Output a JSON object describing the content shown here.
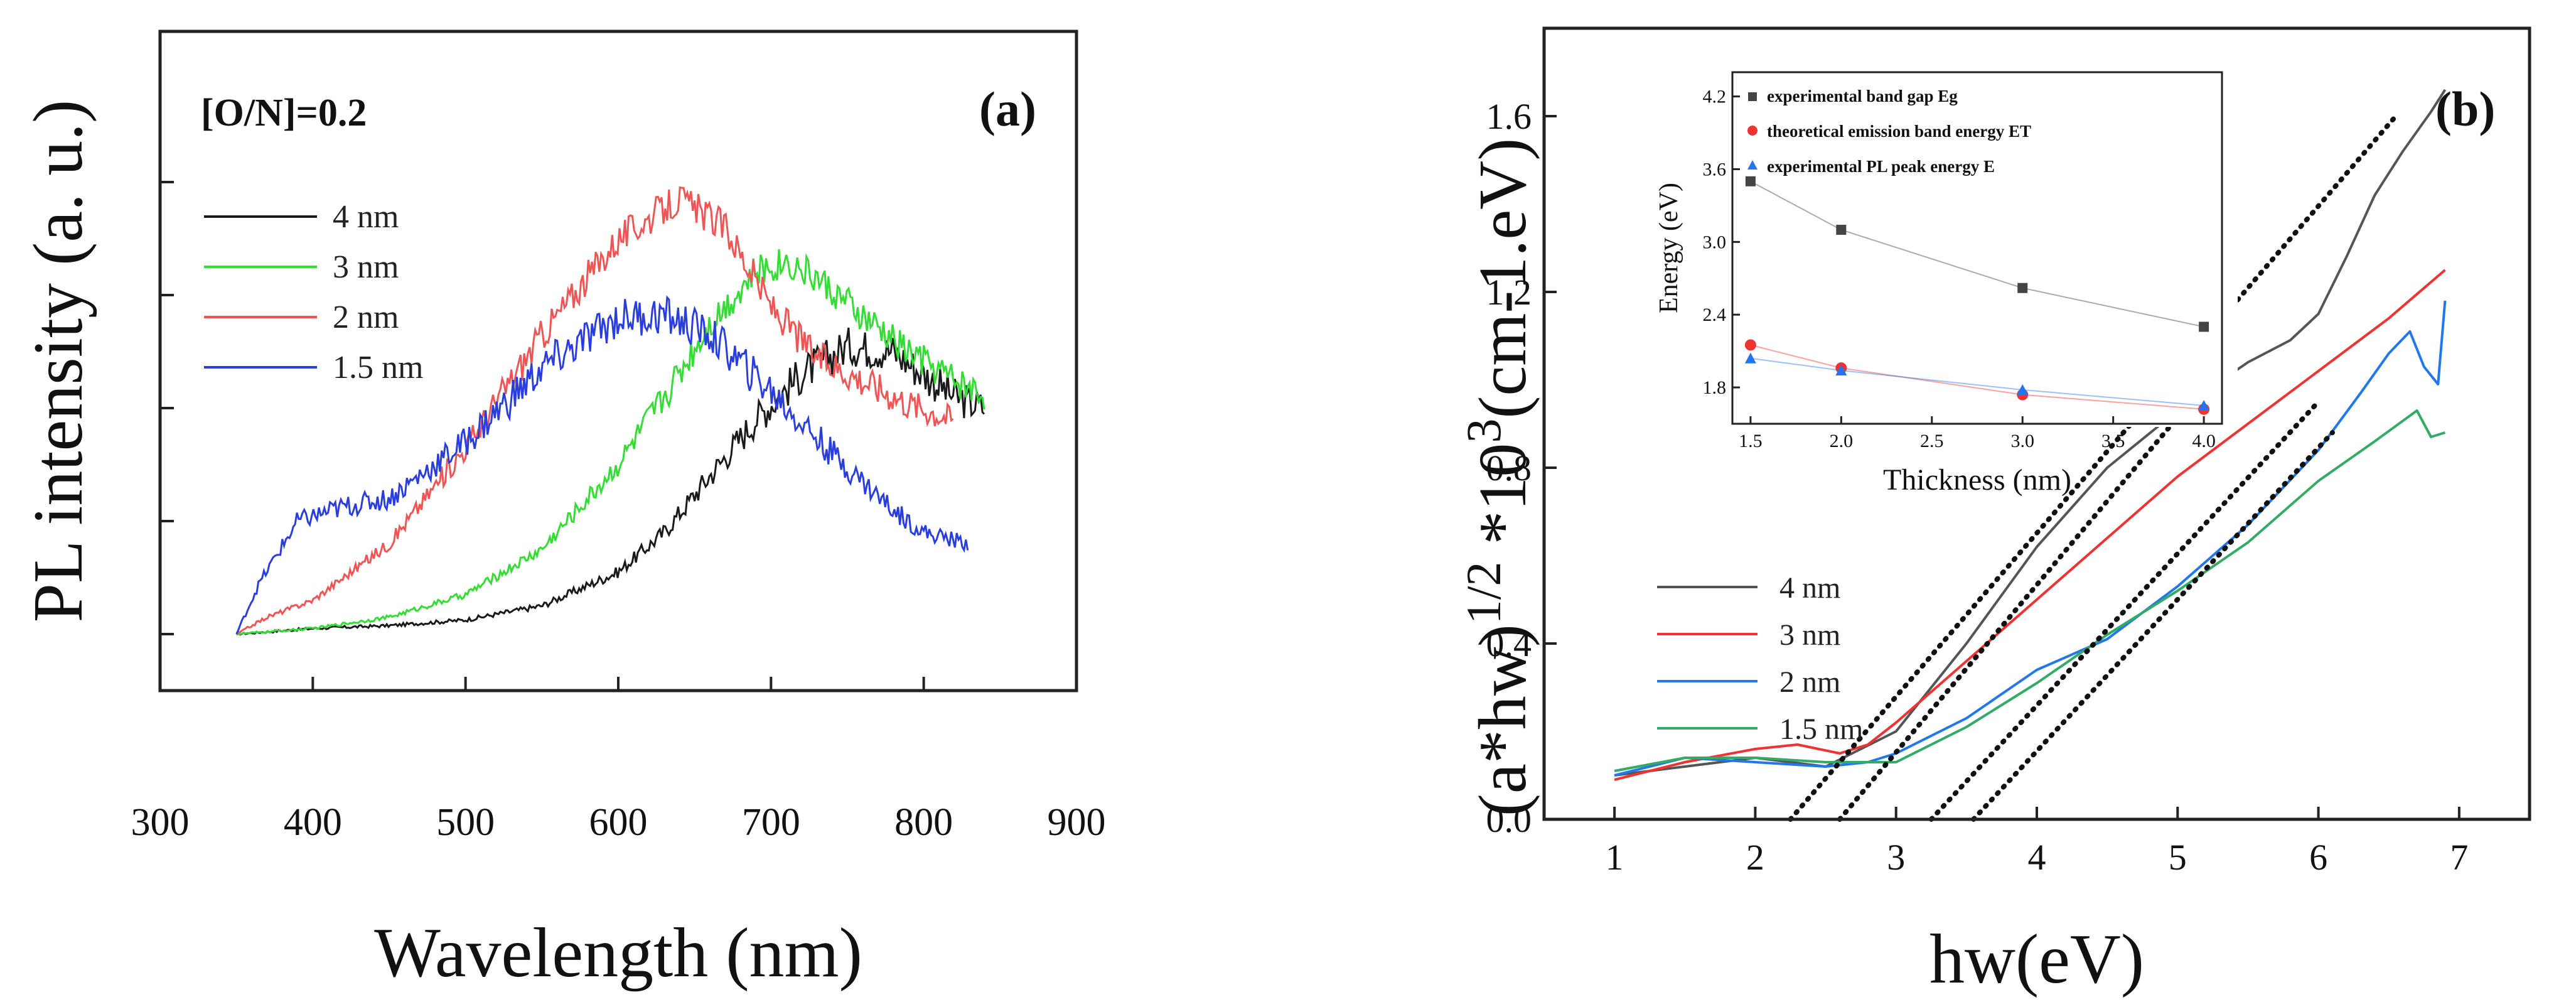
{
  "chart_data": [
    {
      "panel": "a",
      "type": "line",
      "panel_label": "(a)",
      "annotation": "[O/N]=0.2",
      "xlabel": "Wavelength (nm)",
      "ylabel": "PL intensity (a. u.)",
      "xlim": [
        300,
        900
      ],
      "xticks": [
        300,
        400,
        500,
        600,
        700,
        800,
        900
      ],
      "ylim": [
        0,
        1
      ],
      "yticks_unlabeled": 5,
      "legend_position": "upper-left",
      "series": [
        {
          "name": "4 nm",
          "color": "#1a1a1a",
          "noise": 0.035,
          "x": [
            350,
            400,
            450,
            500,
            550,
            600,
            630,
            660,
            690,
            720,
            750,
            780,
            800,
            820,
            840
          ],
          "y": [
            0,
            0.01,
            0.015,
            0.025,
            0.05,
            0.11,
            0.18,
            0.28,
            0.38,
            0.46,
            0.51,
            0.5,
            0.46,
            0.42,
            0.4
          ]
        },
        {
          "name": "3 nm",
          "color": "#33dd33",
          "noise": 0.03,
          "x": [
            350,
            400,
            450,
            500,
            550,
            600,
            630,
            660,
            690,
            710,
            730,
            760,
            790,
            820,
            840
          ],
          "y": [
            0,
            0.01,
            0.03,
            0.07,
            0.15,
            0.3,
            0.42,
            0.55,
            0.64,
            0.66,
            0.63,
            0.56,
            0.5,
            0.45,
            0.42
          ]
        },
        {
          "name": "2 nm",
          "color": "#ee5555",
          "noise": 0.03,
          "x": [
            350,
            370,
            400,
            450,
            500,
            550,
            600,
            640,
            670,
            700,
            730,
            760,
            790,
            820
          ],
          "y": [
            0,
            0.03,
            0.06,
            0.16,
            0.33,
            0.53,
            0.7,
            0.77,
            0.72,
            0.58,
            0.49,
            0.45,
            0.41,
            0.38
          ]
        },
        {
          "name": "1.5 nm",
          "color": "#2a3ddd",
          "noise": 0.035,
          "x": [
            350,
            365,
            390,
            420,
            450,
            500,
            550,
            600,
            630,
            660,
            700,
            740,
            780,
            800,
            830
          ],
          "y": [
            0,
            0.09,
            0.2,
            0.225,
            0.24,
            0.34,
            0.47,
            0.56,
            0.565,
            0.53,
            0.43,
            0.32,
            0.22,
            0.18,
            0.16
          ]
        }
      ]
    },
    {
      "panel": "b",
      "type": "line",
      "panel_label": "(b)",
      "xlabel": "hw(eV)",
      "ylabel": "(a*hw)1/2 *103(cm-1.eV)",
      "ylabel_parts": {
        "main": "(a*hw)",
        "sup1": "1/2",
        "mid": " *10",
        "sup2": "3",
        "unit": "(cm-1.eV)"
      },
      "xlim": [
        0.5,
        7.5
      ],
      "xticks": [
        1,
        2,
        3,
        4,
        5,
        6,
        7
      ],
      "ylim": [
        0,
        1.8
      ],
      "yticks": [
        0.0,
        0.4,
        0.8,
        1.2,
        1.6
      ],
      "ytick_labels": [
        "0.0",
        "0.4",
        "0.8",
        "1.2",
        "1.6"
      ],
      "legend_position": "lower-left",
      "series": [
        {
          "name": "4 nm",
          "color": "#555555",
          "x": [
            1.0,
            1.5,
            2.0,
            2.5,
            3.0,
            3.5,
            4.0,
            4.5,
            5.0,
            5.5,
            5.8,
            6.0,
            6.2,
            6.4,
            6.6,
            6.8,
            6.9
          ],
          "y": [
            0.1,
            0.12,
            0.14,
            0.12,
            0.2,
            0.4,
            0.62,
            0.8,
            0.93,
            1.04,
            1.09,
            1.15,
            1.28,
            1.42,
            1.52,
            1.61,
            1.66
          ]
        },
        {
          "name": "3 nm",
          "color": "#ee3333",
          "x": [
            1.0,
            1.5,
            2.0,
            2.3,
            2.6,
            2.8,
            3.0,
            3.5,
            4.0,
            4.5,
            5.0,
            5.5,
            6.0,
            6.5,
            6.9
          ],
          "y": [
            0.09,
            0.13,
            0.16,
            0.17,
            0.15,
            0.17,
            0.22,
            0.36,
            0.5,
            0.64,
            0.78,
            0.9,
            1.02,
            1.14,
            1.25
          ]
        },
        {
          "name": "2 nm",
          "color": "#2277ee",
          "x": [
            1.0,
            1.5,
            2.0,
            2.5,
            2.8,
            3.0,
            3.5,
            4.0,
            4.5,
            5.0,
            5.5,
            6.0,
            6.3,
            6.5,
            6.65,
            6.75,
            6.85,
            6.9
          ],
          "y": [
            0.1,
            0.14,
            0.13,
            0.12,
            0.13,
            0.15,
            0.23,
            0.34,
            0.41,
            0.53,
            0.67,
            0.84,
            0.97,
            1.06,
            1.11,
            1.03,
            0.99,
            1.18
          ]
        },
        {
          "name": "1.5 nm",
          "color": "#33aa66",
          "x": [
            1.0,
            1.5,
            2.0,
            2.5,
            3.0,
            3.5,
            4.0,
            4.5,
            5.0,
            5.5,
            6.0,
            6.4,
            6.7,
            6.8,
            6.9
          ],
          "y": [
            0.11,
            0.14,
            0.14,
            0.13,
            0.13,
            0.21,
            0.31,
            0.42,
            0.52,
            0.63,
            0.77,
            0.86,
            0.93,
            0.87,
            0.88
          ]
        }
      ],
      "tangent_lines": [
        {
          "x": [
            2.25,
            6.55
          ],
          "y": [
            0.0,
            1.6
          ]
        },
        {
          "x": [
            2.6,
            5.25
          ],
          "y": [
            0.0,
            1.01
          ]
        },
        {
          "x": [
            3.25,
            6.0
          ],
          "y": [
            0.0,
            0.95
          ]
        },
        {
          "x": [
            3.55,
            6.1
          ],
          "y": [
            0.0,
            0.88
          ]
        }
      ],
      "inset": {
        "type": "line",
        "xlabel": "Thickness (nm)",
        "ylabel": "Energy (eV)",
        "xlim": [
          1.4,
          4.1
        ],
        "xticks": [
          1.5,
          2.0,
          2.5,
          3.0,
          3.5,
          4.0
        ],
        "xtick_labels": [
          "1.5",
          "2.0",
          "2.5",
          "3.0",
          "3.5",
          "4.0"
        ],
        "ylim": [
          1.5,
          4.4
        ],
        "yticks": [
          1.8,
          2.4,
          3.0,
          3.6,
          4.2
        ],
        "ytick_labels": [
          "1.8",
          "2.4",
          "3.0",
          "3.6",
          "4.2"
        ],
        "legend": [
          "experimental band gap Eg",
          "theoretical emission band energy ET",
          "experimental PL peak energy E"
        ],
        "series": [
          {
            "name": "experimental band gap Eg",
            "color": "#444444",
            "marker": "square",
            "x": [
              1.5,
              2.0,
              3.0,
              4.0
            ],
            "y": [
              3.5,
              3.1,
              2.62,
              2.3
            ]
          },
          {
            "name": "theoretical emission band energy ET",
            "color": "#ee3333",
            "marker": "circle",
            "x": [
              1.5,
              2.0,
              3.0,
              4.0
            ],
            "y": [
              2.15,
              1.96,
              1.74,
              1.62
            ]
          },
          {
            "name": "experimental PL peak energy E",
            "color": "#2277ee",
            "marker": "triangle",
            "x": [
              1.5,
              2.0,
              3.0,
              4.0
            ],
            "y": [
              2.04,
              1.94,
              1.78,
              1.65
            ]
          }
        ]
      }
    }
  ]
}
